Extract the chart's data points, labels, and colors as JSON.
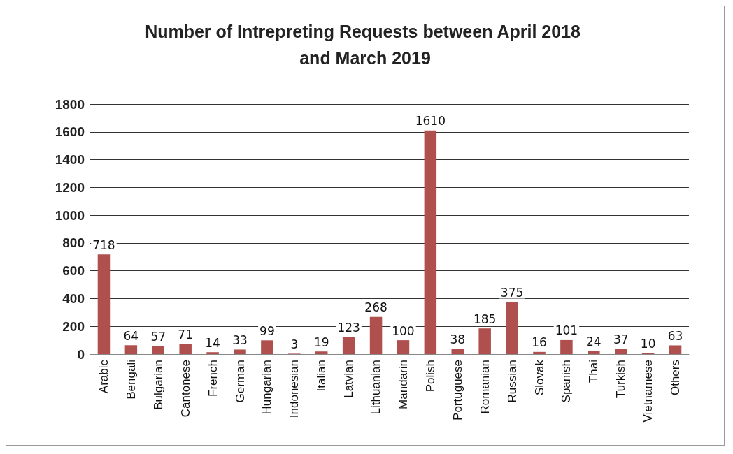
{
  "chart_data": {
    "type": "bar",
    "title": "Number of Intrepreting Requests between April 2018 and March 2019",
    "categories": [
      "Arabic",
      "Bengali",
      "Bulgarian",
      "Cantonese",
      "French",
      "German",
      "Hungarian",
      "Indonesian",
      "Italian",
      "Latvian",
      "Lithuanian",
      "Mandarin",
      "Polish",
      "Portuguese",
      "Romanian",
      "Russian",
      "Slovak",
      "Spanish",
      "Thai",
      "Turkish",
      "Vietnamese",
      "Others"
    ],
    "values": [
      718,
      64,
      57,
      71,
      14,
      33,
      99,
      3,
      19,
      123,
      268,
      100,
      1610,
      38,
      185,
      375,
      16,
      101,
      24,
      37,
      10,
      63
    ],
    "color": "#b0504e",
    "ylim": [
      0,
      1800
    ],
    "yticks": [
      0,
      200,
      400,
      600,
      800,
      1000,
      1200,
      1400,
      1600,
      1800
    ],
    "grid": "y",
    "data_labels": true
  }
}
